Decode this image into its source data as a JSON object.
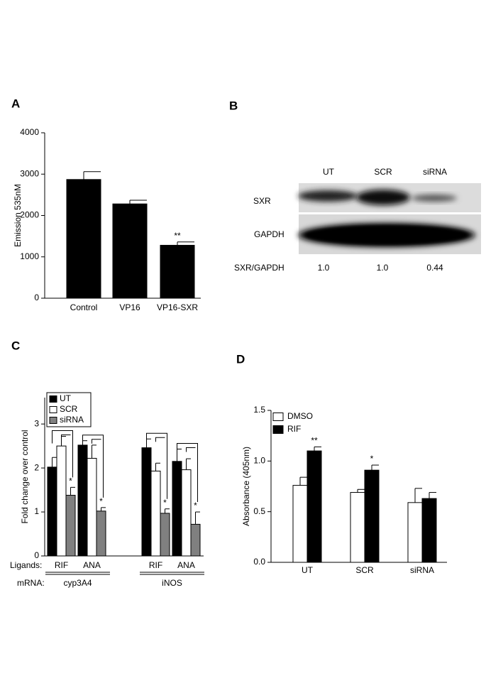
{
  "chart_data": [
    {
      "type": "bar",
      "panel": "A",
      "ylabel": "Emission 535nM",
      "categories": [
        "Control",
        "VP16",
        "VP16-SXR"
      ],
      "values": [
        2870,
        2280,
        1280
      ],
      "errors": [
        190,
        90,
        80
      ],
      "significance": [
        null,
        null,
        "**"
      ],
      "color": "#000000",
      "ylim": [
        0,
        4000
      ],
      "yticks": [
        0,
        1000,
        2000,
        3000,
        4000
      ]
    },
    {
      "type": "grouped_bar",
      "panel": "C",
      "ylabel": "Fold change over control",
      "row_labels": [
        "Ligands:",
        "mRNA:"
      ],
      "categories": [
        "RIF",
        "ANA",
        "RIF",
        "ANA"
      ],
      "groups": [
        "cyp3A4",
        "iNOS"
      ],
      "series": [
        {
          "name": "UT",
          "color": "#000000",
          "values": [
            2.02,
            2.52,
            2.46,
            2.15
          ],
          "errors": [
            0.22,
            0.1,
            0.2,
            0.28
          ]
        },
        {
          "name": "SCR",
          "color": "#ffffff",
          "values": [
            2.5,
            2.22,
            1.93,
            1.96
          ],
          "errors": [
            0.22,
            0.3,
            0.18,
            0.25
          ]
        },
        {
          "name": "siRNA",
          "color": "#808080",
          "values": [
            1.38,
            1.02,
            0.97,
            0.72
          ],
          "errors": [
            0.18,
            0.08,
            0.1,
            0.28
          ],
          "significance": [
            "*",
            "*",
            "*",
            "*"
          ]
        }
      ],
      "ylim": [
        0,
        3.6
      ],
      "yticks": [
        0,
        1,
        2,
        3
      ],
      "legend": "upper left"
    },
    {
      "type": "grouped_bar",
      "panel": "D",
      "ylabel": "Absorbance (405nm)",
      "categories": [
        "UT",
        "SCR",
        "siRNA"
      ],
      "series": [
        {
          "name": "DMSO",
          "color": "#ffffff",
          "values": [
            0.76,
            0.69,
            0.59
          ],
          "errors": [
            0.08,
            0.03,
            0.14
          ]
        },
        {
          "name": "RIF",
          "color": "#000000",
          "values": [
            1.1,
            0.91,
            0.63
          ],
          "errors": [
            0.04,
            0.05,
            0.06
          ],
          "significance": [
            "**",
            "*",
            null
          ]
        }
      ],
      "ylim": [
        0,
        1.5
      ],
      "yticks": [
        {
          "value": 0,
          "label": "0.0"
        },
        {
          "value": 0.5,
          "label": "0.5"
        },
        {
          "value": 1,
          "label": "1.0"
        },
        {
          "value": 1.5,
          "label": "1.5"
        }
      ],
      "legend": "upper left"
    }
  ],
  "blot": {
    "panel": "B",
    "lanes": [
      "UT",
      "SCR",
      "siRNA"
    ],
    "rows": [
      "SXR",
      "GAPDH"
    ],
    "ratio_label": "SXR/GAPDH",
    "ratios": [
      "1.0",
      "1.0",
      "0.44"
    ]
  }
}
